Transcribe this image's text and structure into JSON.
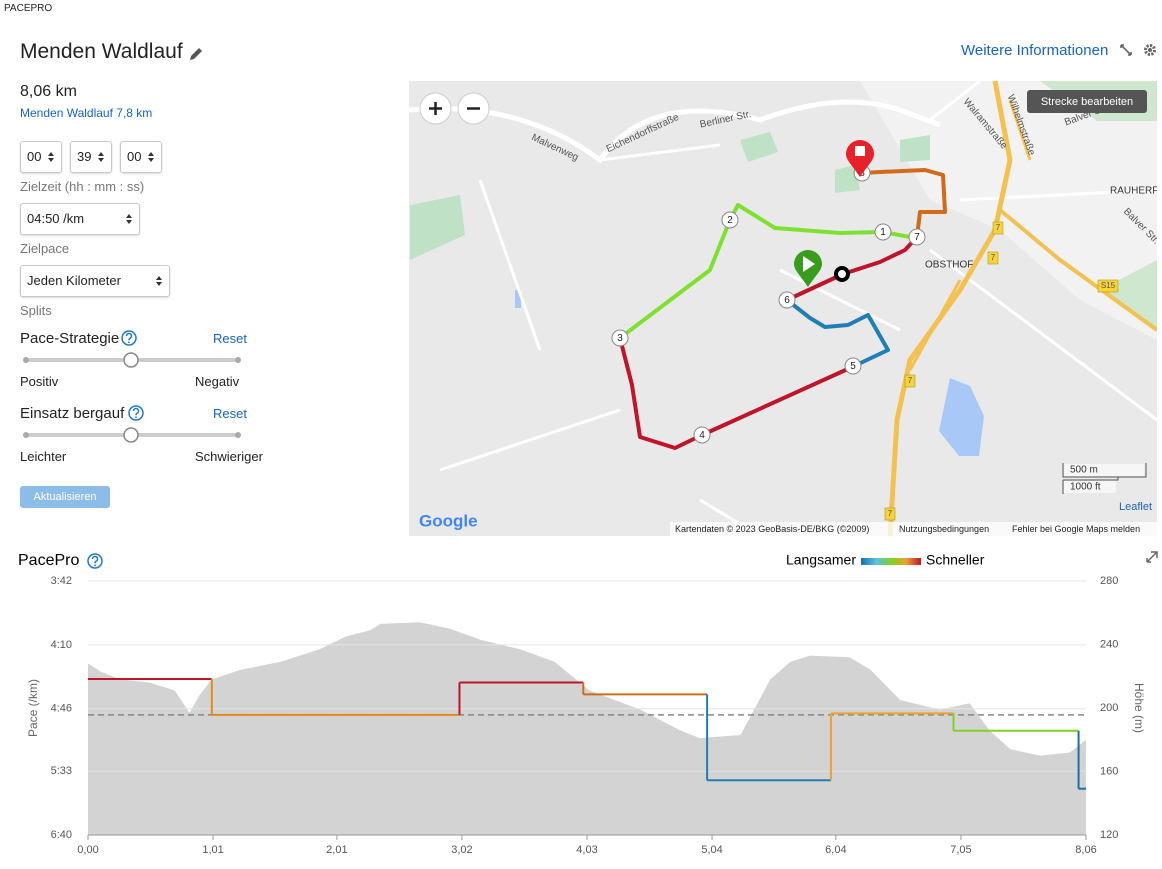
{
  "app": "PACEPRO",
  "header": {
    "title": "Menden Waldlauf",
    "link": "Weitere Informationen"
  },
  "form": {
    "distance": "8,06 km",
    "route_link": "Menden Waldlauf 7,8 km",
    "time": [
      "00",
      "39",
      "00"
    ],
    "time_label": "Zielzeit (hh : mm : ss)",
    "pace": "04:50 /km",
    "pace_label": "Zielpace",
    "splits": "Jeden Kilometer",
    "splits_label": "Splits",
    "strategy": {
      "label": "Pace-Strategie",
      "reset": "Reset",
      "left": "Positiv",
      "right": "Negativ"
    },
    "uphill": {
      "label": "Einsatz bergauf",
      "reset": "Reset",
      "left": "Leichter",
      "right": "Schwieriger"
    },
    "button": "Aktualisieren"
  },
  "map": {
    "edit_button": "Strecke bearbeiten",
    "markers": [
      "1",
      "2",
      "3",
      "4",
      "5",
      "6",
      "7",
      "8"
    ],
    "labels": [
      "Berliner Str.",
      "Eichendorffstraße",
      "Malvenweg",
      "OBSTHOF",
      "RAUHERF",
      "Balver Str.",
      "Walramstraße",
      "Wilhelmstraße",
      "Balver Str.",
      "7",
      "7",
      "7",
      "7",
      "S15"
    ],
    "scale": [
      "500 m",
      "1000 ft"
    ],
    "attribution": "Leaflet",
    "google": "Google",
    "footer": [
      "Kartendaten © 2023 GeoBasis-DE/BKG (©2009)",
      "Nutzungsbedingungen",
      "Fehler bei Google Maps melden"
    ]
  },
  "chart_data": {
    "type": "step",
    "title": "PacePro",
    "legend": {
      "low": "Langsamer",
      "high": "Schneller"
    },
    "ylabel": "Pace (/km)",
    "y2label": "Höhe (m)",
    "y_scale": "reciprocal",
    "xlim": [
      0,
      8.06
    ],
    "xticks": [
      {
        "value": 0,
        "label": "0,00"
      },
      {
        "value": 1.01,
        "label": "1,01"
      },
      {
        "value": 2.01,
        "label": "2,01"
      },
      {
        "value": 3.02,
        "label": "3,02"
      },
      {
        "value": 4.03,
        "label": "4,03"
      },
      {
        "value": 5.04,
        "label": "5,04"
      },
      {
        "value": 6.04,
        "label": "6,04"
      },
      {
        "value": 7.05,
        "label": "7,05"
      },
      {
        "value": 8.06,
        "label": "8,06"
      }
    ],
    "ylim": [
      222,
      400
    ],
    "yticks": [
      {
        "value": 222,
        "label": "3:42"
      },
      {
        "value": 250,
        "label": "4:10"
      },
      {
        "value": 286,
        "label": "4:46"
      },
      {
        "value": 333,
        "label": "5:33"
      },
      {
        "value": 400,
        "label": "6:40"
      }
    ],
    "y2lim": [
      120,
      280
    ],
    "y2ticks": [
      120,
      160,
      200,
      240,
      280
    ],
    "target_pace": 290,
    "segments": [
      {
        "start": 0,
        "end": 1,
        "value": 268,
        "color": "#c0142b"
      },
      {
        "start": 1,
        "end": 3,
        "value": 290,
        "color": "#e48a1e"
      },
      {
        "start": 3,
        "end": 4,
        "value": 270,
        "color": "#c0142b"
      },
      {
        "start": 4,
        "end": 5,
        "value": 277,
        "color": "#d06b1a"
      },
      {
        "start": 5,
        "end": 6,
        "value": 341,
        "color": "#1f7fb4"
      },
      {
        "start": 6,
        "end": 6.99,
        "value": 289,
        "color": "#f0a030"
      },
      {
        "start": 6.99,
        "end": 8,
        "value": 301,
        "color": "#7ed321"
      },
      {
        "start": 8,
        "end": 8.06,
        "value": 349,
        "color": "#1a6fa8"
      }
    ],
    "elevation": {
      "axis": "y2",
      "color": "#d3d3d3",
      "x": [
        0,
        0.1,
        0.26,
        0.5,
        0.7,
        0.82,
        0.9,
        1,
        1.23,
        1.55,
        1.87,
        2.08,
        2.28,
        2.36,
        2.68,
        2.92,
        3.17,
        3.49,
        3.77,
        4.05,
        4.46,
        4.78,
        4.94,
        5.27,
        5.51,
        5.67,
        5.83,
        6.15,
        6.32,
        6.56,
        6.88,
        7.12,
        7.28,
        7.45,
        7.69,
        7.93,
        8.06
      ],
      "values": [
        228,
        223,
        218,
        216,
        211,
        197,
        208,
        218,
        224,
        229,
        237,
        245,
        249,
        253,
        254,
        250,
        243,
        237,
        229,
        211,
        199,
        186,
        181,
        183,
        218,
        229,
        233,
        232,
        224,
        205,
        199,
        203,
        186,
        174,
        170,
        172,
        180
      ]
    }
  }
}
